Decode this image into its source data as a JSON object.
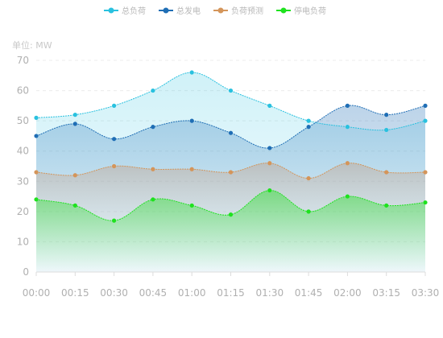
{
  "chart_data": {
    "type": "line",
    "unit_label": "单位: MW",
    "categories": [
      "00:00",
      "00:15",
      "00:30",
      "00:45",
      "01:00",
      "01:15",
      "01:30",
      "01:45",
      "02:00",
      "03:15",
      "03:30"
    ],
    "ylim": [
      0,
      70
    ],
    "yticks": [
      0,
      10,
      20,
      30,
      40,
      50,
      60,
      70
    ],
    "grid": true,
    "legend_position": "top",
    "smooth": true,
    "series": [
      {
        "name": "总负荷",
        "color": "#29c1df",
        "values": [
          51,
          52,
          55,
          60,
          66,
          60,
          55,
          50,
          48,
          47,
          50
        ]
      },
      {
        "name": "总发电",
        "color": "#1f6eb5",
        "values": [
          45,
          49,
          44,
          48,
          50,
          46,
          41,
          48,
          55,
          52,
          55
        ]
      },
      {
        "name": "负荷预测",
        "color": "#d4955a",
        "values": [
          33,
          32,
          35,
          34,
          34,
          33,
          36,
          31,
          36,
          33,
          33
        ]
      },
      {
        "name": "停电负荷",
        "color": "#1ee21e",
        "values": [
          24,
          22,
          17,
          24,
          22,
          19,
          27,
          20,
          25,
          22,
          23
        ]
      }
    ]
  }
}
